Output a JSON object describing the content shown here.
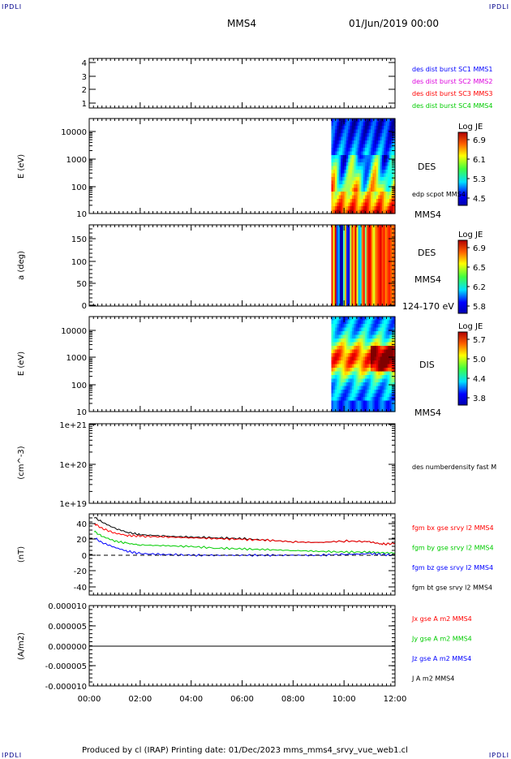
{
  "header": {
    "corner_label": "IPDLI",
    "spacecraft": "MMS4",
    "date": "01/Jun/2019 00:00"
  },
  "footer": {
    "text": "Produced by cl (IRAP)   Printing date: 01/Dec/2023   mms_mms4_srvy_vue_web1.cl"
  },
  "time_axis": {
    "ticks": [
      "00:00",
      "02:00",
      "04:00",
      "06:00",
      "08:00",
      "10:00",
      "12:00"
    ],
    "range_hours": [
      0,
      12
    ]
  },
  "colors": {
    "blue": "#0000ff",
    "magenta": "#dd00dd",
    "red": "#ff0000",
    "green": "#00cc00",
    "black": "#000000"
  },
  "panels": {
    "config": {
      "ticks": [
        "4",
        "3",
        "2",
        "1"
      ],
      "legend": [
        {
          "label": "des dist burst SC1 MMS1",
          "color": "#0000ff"
        },
        {
          "label": "des dist burst SC2 MMS2",
          "color": "#dd00dd"
        },
        {
          "label": "des dist burst SC3 MMS3",
          "color": "#ff0000"
        },
        {
          "label": "des dist burst SC4 MMS4",
          "color": "#00cc00"
        }
      ]
    },
    "des_energy": {
      "ylabel": "E (eV)",
      "ticks": [
        "10000",
        "1000",
        "100",
        "10"
      ],
      "right_labels": [
        "DES",
        "MMS4"
      ],
      "overlay_label": "edp scpot MMS4",
      "colorbar": {
        "title": "Log JE",
        "ticks": [
          "6.9",
          "6.1",
          "5.3",
          "4.5"
        ]
      }
    },
    "des_pitch": {
      "ylabel": "a (deg)",
      "ticks": [
        "150",
        "100",
        "50",
        "0"
      ],
      "right_labels": [
        "DES",
        "MMS4",
        "124-170 eV"
      ],
      "colorbar": {
        "title": "Log JE",
        "ticks": [
          "6.9",
          "6.5",
          "6.2",
          "5.8"
        ]
      }
    },
    "dis_energy": {
      "ylabel": "E (eV)",
      "ticks": [
        "10000",
        "1000",
        "100",
        "10"
      ],
      "right_labels": [
        "DIS",
        "MMS4"
      ],
      "colorbar": {
        "title": "Log JE",
        "ticks": [
          "5.7",
          "5.0",
          "4.4",
          "3.8"
        ]
      }
    },
    "density": {
      "ylabel": "(cm^-3)",
      "ticks": [
        "1e+21",
        "1e+20",
        "1e+19"
      ],
      "legend": [
        {
          "label": "des numberdensity fast M",
          "color": "#000000"
        }
      ]
    },
    "magnetic": {
      "ylabel": "(nT)",
      "ticks": [
        "40",
        "20",
        "0",
        "-20",
        "-40"
      ],
      "legend": [
        {
          "label": "fgm bx gse srvy l2 MMS4",
          "color": "#ff0000"
        },
        {
          "label": "fgm by gse srvy l2 MMS4",
          "color": "#00cc00"
        },
        {
          "label": "fgm bz gse srvy l2 MMS4",
          "color": "#0000ff"
        },
        {
          "label": "fgm bt gse srvy l2 MMS4",
          "color": "#000000"
        }
      ]
    },
    "current": {
      "ylabel": "(A/m2)",
      "ticks": [
        "0.000010",
        "0.000005",
        "0.000000",
        "-0.000005",
        "-0.000010"
      ],
      "legend": [
        {
          "label": "Jx gse A m2 MMS4",
          "color": "#ff0000"
        },
        {
          "label": "Jy gse A m2 MMS4",
          "color": "#00cc00"
        },
        {
          "label": "Jz gse A m2 MMS4",
          "color": "#0000ff"
        },
        {
          "label": "J A m2 MMS4",
          "color": "#000000"
        }
      ]
    }
  },
  "chart_data": [
    {
      "type": "line",
      "title": "",
      "ylabel": "(nT)",
      "xlabel": "",
      "x_unit": "hours",
      "ylim": [
        -50,
        50
      ],
      "x": [
        0.2,
        0.5,
        1,
        1.5,
        2,
        3,
        4,
        5,
        6,
        7,
        8,
        9,
        10,
        11,
        11.5,
        12
      ],
      "series": [
        {
          "name": "fgm bt gse srvy l2 MMS4",
          "color": "#000000",
          "values": [
            48,
            42,
            34,
            29,
            26,
            24,
            23,
            22,
            21,
            19,
            17,
            16,
            18,
            17,
            14,
            15
          ]
        },
        {
          "name": "fgm bx gse srvy l2 MMS4",
          "color": "#ff0000",
          "values": [
            40,
            34,
            28,
            25,
            24,
            23,
            22,
            21,
            20,
            19,
            17,
            16,
            18,
            17,
            14,
            15
          ]
        },
        {
          "name": "fgm by gse srvy l2 MMS4",
          "color": "#00cc00",
          "values": [
            30,
            24,
            18,
            15,
            13,
            12,
            11,
            9,
            8,
            7,
            6,
            5,
            4,
            4,
            3,
            3
          ]
        },
        {
          "name": "fgm bz gse srvy l2 MMS4",
          "color": "#0000ff",
          "values": [
            22,
            16,
            10,
            5,
            2,
            1,
            0,
            0,
            0,
            0,
            0,
            0,
            1,
            2,
            1,
            0
          ]
        }
      ]
    },
    {
      "type": "heatmap",
      "ylabel": "E (eV)",
      "data_start_hours": 9.5,
      "x_unit": "hours",
      "y_log_range": [
        10,
        30000
      ]
    }
  ]
}
